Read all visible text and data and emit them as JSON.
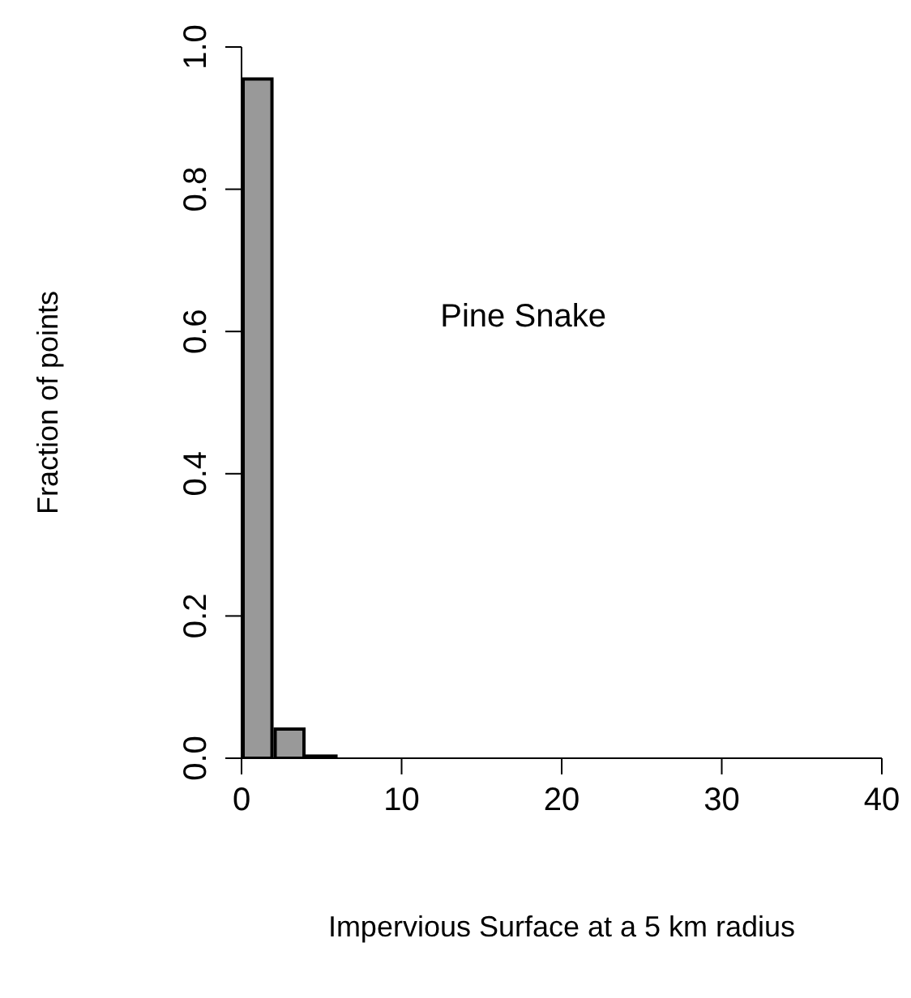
{
  "chart_data": {
    "type": "histogram",
    "xlabel": "Impervious Surface at a 5 km radius",
    "ylabel": "Fraction of points",
    "annotations": [
      "Pine Snake"
    ],
    "bins": [
      0,
      2,
      4,
      6,
      8,
      10,
      12,
      14,
      16,
      18,
      20,
      22,
      24,
      26,
      28,
      30,
      32,
      34
    ],
    "values": [
      0.955,
      0.041,
      0.003,
      0,
      0,
      0,
      0,
      0,
      0,
      0,
      0,
      0,
      0,
      0,
      0,
      0,
      0
    ],
    "color": "#999999",
    "xlim": [
      0,
      40
    ],
    "xticks": [
      0,
      10,
      20,
      30,
      40
    ],
    "ylim": [
      0,
      1
    ],
    "yticks": [
      {
        "value": 0,
        "label": "0.0"
      },
      {
        "value": 0.2,
        "label": "0.2"
      },
      {
        "value": 0.4,
        "label": "0.4"
      },
      {
        "value": 0.6,
        "label": "0.6"
      },
      {
        "value": 0.8,
        "label": "0.8"
      },
      {
        "value": 1,
        "label": "1.0"
      }
    ],
    "grid": false
  }
}
